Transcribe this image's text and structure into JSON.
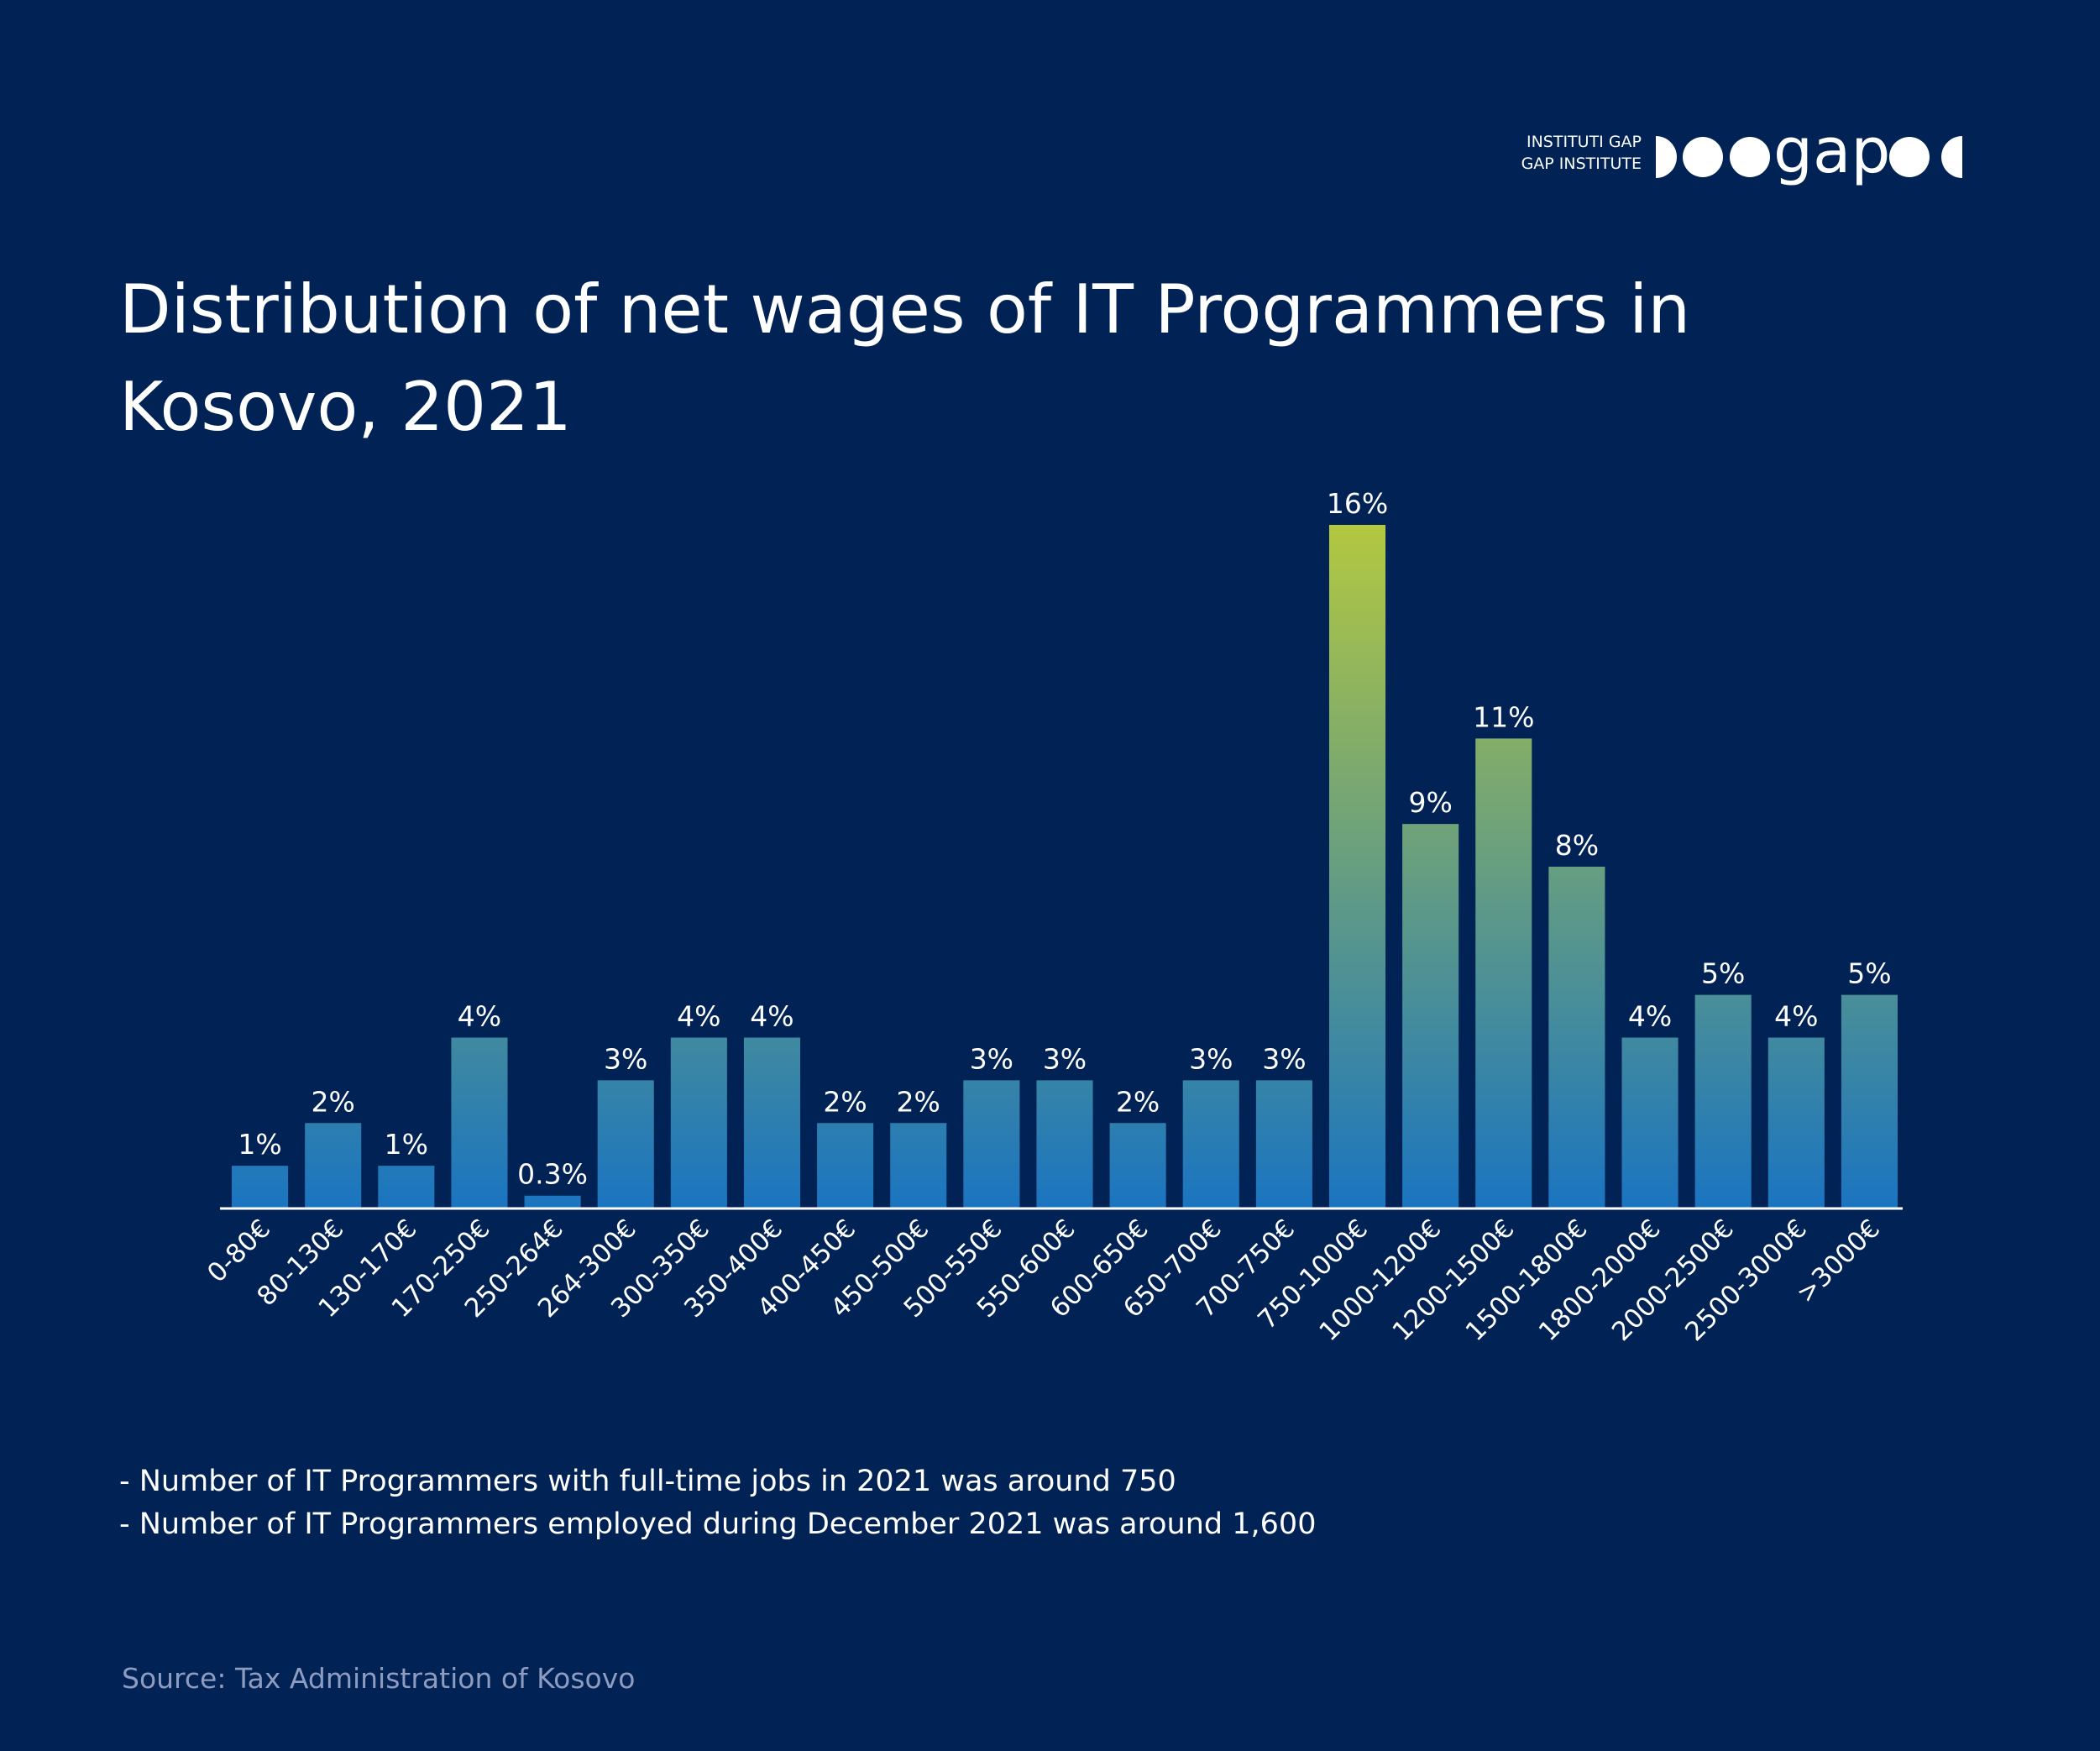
{
  "logo": {
    "line1": "INSTITUTI GAP",
    "line2": "GAP INSTITUTE",
    "wordmark": "gap"
  },
  "chart_data": {
    "type": "bar",
    "title": [
      "Distribution of net wages of IT Programmers in",
      "Kosovo, 2021"
    ],
    "categories": [
      "0-80€",
      "80-130€",
      "130-170€",
      "170-250€",
      "250-264€",
      "264-300€",
      "300-350€",
      "350-400€",
      "400-450€",
      "450-500€",
      "500-550€",
      "550-600€",
      "600-650€",
      "650-700€",
      "700-750€",
      "750-1000€",
      "1000-1200€",
      "1200-1500€",
      "1500-1800€",
      "1800-2000€",
      "2000-2500€",
      "2500-3000€",
      ">3000€"
    ],
    "values": [
      1,
      2,
      1,
      4,
      0.3,
      3,
      4,
      4,
      2,
      2,
      3,
      3,
      2,
      3,
      3,
      16,
      9,
      11,
      8,
      4,
      5,
      4,
      5
    ],
    "value_labels": [
      "1%",
      "2%",
      "1%",
      "4%",
      "0.3%",
      "3%",
      "4%",
      "4%",
      "2%",
      "2%",
      "3%",
      "3%",
      "2%",
      "3%",
      "3%",
      "16%",
      "9%",
      "11%",
      "8%",
      "4%",
      "5%",
      "4%",
      "5%"
    ],
    "color": [
      "#1a74c0",
      "#b3c840"
    ],
    "notes": [
      "- Number of IT Programmers with full-time jobs in 2021 was around 750",
      "- Number of IT Programmers employed during December 2021 was around 1,600"
    ],
    "source": "Source: Tax Administration of Kosovo"
  }
}
